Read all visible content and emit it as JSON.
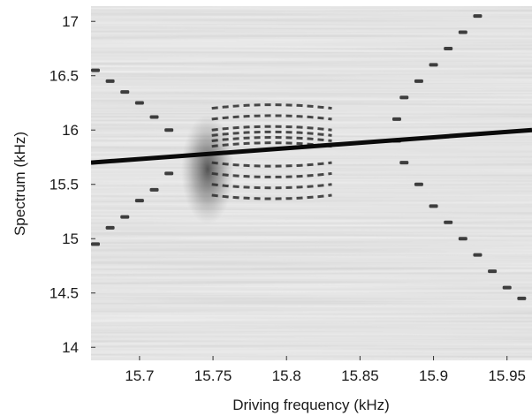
{
  "chart_data": {
    "type": "heatmap",
    "title": "",
    "xlabel": "Driving frequency (kHz)",
    "ylabel": "Spectrum (kHz)",
    "xlim": [
      15.667,
      15.967
    ],
    "ylim": [
      13.88,
      17.14
    ],
    "x_ticks": [
      "15.7",
      "15.75",
      "15.8",
      "15.85",
      "15.9",
      "15.95"
    ],
    "y_ticks": [
      "14",
      "14.5",
      "15",
      "15.5",
      "16",
      "16.5",
      "17"
    ],
    "grid": false,
    "colormap": "grayscale",
    "background_color": "#c9c9c9",
    "signal_color": "#2b2b2b",
    "line_color": "#0a0a0a",
    "series": [
      {
        "kind": "line",
        "x": [
          15.667,
          15.967
        ],
        "y": [
          15.7,
          16.0
        ]
      }
    ],
    "features": {
      "dark_blob_center": [
        15.75,
        15.8
      ],
      "upper_left_branch": {
        "x": [
          15.67,
          15.68,
          15.69,
          15.7,
          15.71,
          15.72
        ],
        "y": [
          16.55,
          16.45,
          16.35,
          16.25,
          16.12,
          16.0
        ]
      },
      "lower_left_branch": {
        "x": [
          15.67,
          15.68,
          15.69,
          15.7,
          15.71,
          15.72
        ],
        "y": [
          14.95,
          15.1,
          15.2,
          15.35,
          15.45,
          15.6
        ]
      },
      "fringe_upper_rows": [
        16.2,
        16.1,
        16.0,
        15.95,
        15.9,
        15.85
      ],
      "fringe_lower_rows": [
        15.7,
        15.6,
        15.5,
        15.4
      ],
      "fringe_x_range": [
        15.76,
        15.82
      ],
      "right_descending_branch": {
        "x": [
          15.875,
          15.88,
          15.89,
          15.9,
          15.91,
          15.92,
          15.93,
          15.94,
          15.95,
          15.96
        ],
        "y": [
          15.9,
          15.7,
          15.5,
          15.3,
          15.15,
          15.0,
          14.85,
          14.7,
          14.55,
          14.45
        ]
      },
      "right_ascending_branch": {
        "x": [
          15.875,
          15.88,
          15.89,
          15.9,
          15.91,
          15.92,
          15.93
        ],
        "y": [
          16.1,
          16.3,
          16.45,
          16.6,
          16.75,
          16.9,
          17.05
        ]
      }
    }
  }
}
